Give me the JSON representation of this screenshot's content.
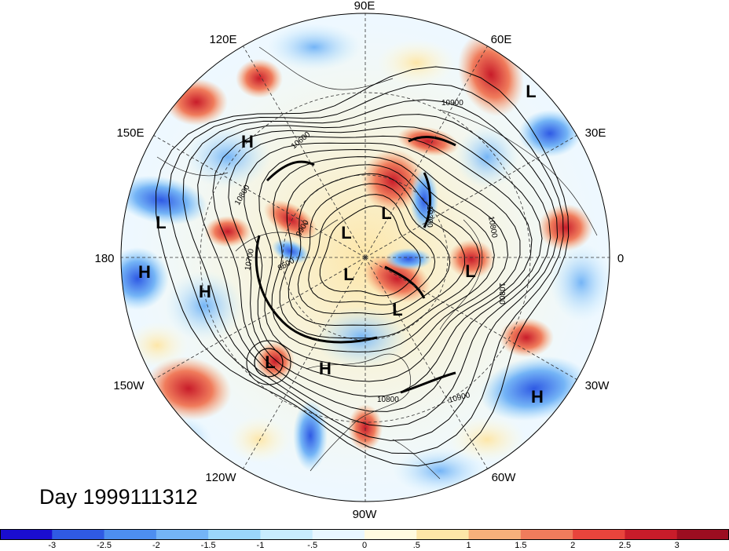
{
  "map": {
    "day_label": "Day 1999111312",
    "longitude_labels": {
      "n": "90E",
      "ne": "60E",
      "nne": "120E",
      "e30": "30E",
      "e150": "150E",
      "w": "180",
      "e": "0",
      "w150": "150W",
      "w30": "30W",
      "w120": "120W",
      "w60": "60W",
      "s": "90W"
    },
    "pressure_systems": [
      {
        "label": "L",
        "name": "low-east-europe"
      },
      {
        "label": "H",
        "name": "high-siberia"
      },
      {
        "label": "L",
        "name": "low-north-pacific"
      },
      {
        "label": "H",
        "name": "high-dateline"
      },
      {
        "label": "H",
        "name": "high-gulf-alaska"
      },
      {
        "label": "L",
        "name": "low-kara"
      },
      {
        "label": "L",
        "name": "low-pole"
      },
      {
        "label": "L",
        "name": "low-beaufort"
      },
      {
        "label": "L",
        "name": "low-atlantic"
      },
      {
        "label": "L",
        "name": "low-greenland"
      },
      {
        "label": "L",
        "name": "low-northeast-pacific"
      },
      {
        "label": "H",
        "name": "high-rockies"
      },
      {
        "label": "H",
        "name": "high-north-atlantic"
      }
    ],
    "contour_labels": [
      "10900",
      "10600",
      "10800",
      "9900",
      "10700",
      "9500",
      "10300",
      "10800",
      "10800",
      "10800",
      "10900"
    ],
    "colors": {
      "ocean_background": "#ffffff",
      "contour": "#000000"
    }
  },
  "colorbar": {
    "colors": [
      "#1a0dd0",
      "#2f5ae4",
      "#4d8ef0",
      "#74b4f6",
      "#9ad6fb",
      "#c8ecfd",
      "#e8f7ff",
      "#fffbe0",
      "#fde6a8",
      "#f7b07b",
      "#f07c5c",
      "#e8443c",
      "#c81c2a",
      "#9c0d20"
    ],
    "ticks": [
      "-3",
      "-2.5",
      "-2",
      "-1.5",
      "-1",
      "-.5",
      "0",
      ".5",
      "1",
      "1.5",
      "2",
      "2.5",
      "3"
    ]
  }
}
